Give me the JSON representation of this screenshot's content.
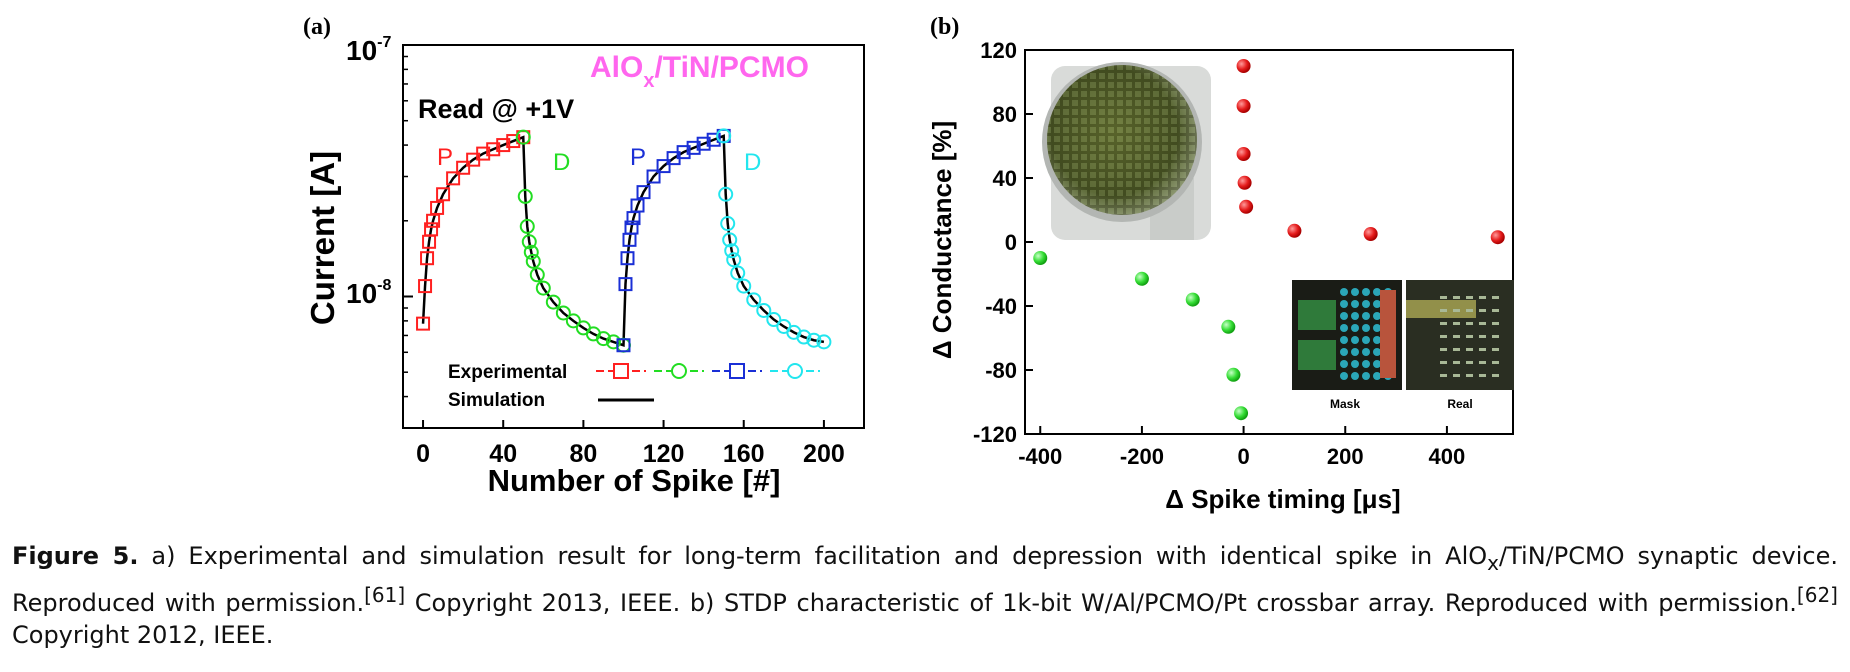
{
  "panel_a": {
    "label": "(a)",
    "material_title": "AlO",
    "material_sub": "x",
    "material_rest": "/TiN/PCMO",
    "read_label": "Read @ +1V",
    "xlabel": "Number of Spike [#]",
    "ylabel": "Current [A]",
    "ytick_top_base": "10",
    "ytick_top_exp": "-7",
    "ytick_mid_base": "10",
    "ytick_mid_exp": "-8",
    "legend_experimental": "Experimental",
    "legend_simulation": "Simulation",
    "seg_labels": [
      "P",
      "D",
      "P",
      "D"
    ],
    "colors": {
      "p1": "#ff2020",
      "d1": "#22dd22",
      "p2": "#1a2fd6",
      "d2": "#22e6ee",
      "sim": "#000000",
      "title": "#ff66ee"
    }
  },
  "panel_b": {
    "label": "(b)",
    "xlabel": "Δ Spike timing [μs]",
    "ylabel": "Δ Conductance [%]",
    "inset_mask_label": "Mask",
    "inset_real_label": "Real"
  },
  "caption": {
    "fig_label": "Figure 5.",
    "text_1": " a) Experimental and simulation result for long-term facilitation and depression with identical spike in AlO",
    "text_1_sub": "x",
    "text_2": "/TiN/PCMO synaptic device. Reproduced with permission.",
    "ref_1": "[61]",
    "text_3": " Copyright 2013, IEEE. b) STDP characteristic of 1k-bit W/Al/PCMO/Pt crossbar array. Reproduced with permission.",
    "ref_2": "[62]",
    "text_4": " Copyright 2012, IEEE."
  },
  "chart_data": [
    {
      "type": "scatter",
      "title": "AlOx/TiN/PCMO",
      "xlabel": "Number of Spike [#]",
      "ylabel": "Current [A]",
      "xlim": [
        -10,
        220
      ],
      "ylim": [
        3e-09,
        1e-07
      ],
      "yscale": "log",
      "xticks": [
        0,
        40,
        80,
        120,
        160,
        200
      ],
      "yticks": [
        1e-08,
        1e-07
      ],
      "series": [
        {
          "name": "P",
          "color": "#ff2020",
          "marker": "square",
          "x": [
            0,
            1,
            2,
            3,
            4,
            5,
            7,
            10,
            15,
            20,
            25,
            30,
            35,
            40,
            45,
            50
          ],
          "y": [
            7.8e-09,
            1.1e-08,
            1.42e-08,
            1.65e-08,
            1.85e-08,
            2e-08,
            2.25e-08,
            2.55e-08,
            2.95e-08,
            3.25e-08,
            3.5e-08,
            3.7e-08,
            3.85e-08,
            4e-08,
            4.15e-08,
            4.3e-08
          ]
        },
        {
          "name": "D",
          "color": "#22dd22",
          "marker": "circle",
          "x": [
            50,
            51,
            52,
            53,
            54,
            55,
            57,
            60,
            65,
            70,
            75,
            80,
            85,
            90,
            95,
            100
          ],
          "y": [
            4.3e-08,
            2.5e-08,
            1.9e-08,
            1.65e-08,
            1.5e-08,
            1.38e-08,
            1.22e-08,
            1.08e-08,
            9.5e-09,
            8.6e-09,
            8e-09,
            7.5e-09,
            7.1e-09,
            6.8e-09,
            6.6e-09,
            6.4e-09
          ]
        },
        {
          "name": "P",
          "color": "#1a2fd6",
          "marker": "square",
          "x": [
            100,
            101,
            102,
            103,
            104,
            105,
            107,
            110,
            115,
            120,
            125,
            130,
            135,
            140,
            145,
            150
          ],
          "y": [
            6.4e-09,
            1.12e-08,
            1.42e-08,
            1.68e-08,
            1.88e-08,
            2.05e-08,
            2.3e-08,
            2.6e-08,
            3e-08,
            3.3e-08,
            3.55e-08,
            3.75e-08,
            3.9e-08,
            4.05e-08,
            4.2e-08,
            4.35e-08
          ]
        },
        {
          "name": "D",
          "color": "#22e6ee",
          "marker": "circle",
          "x": [
            150,
            151,
            152,
            153,
            154,
            155,
            157,
            160,
            165,
            170,
            175,
            180,
            185,
            190,
            195,
            200
          ],
          "y": [
            4.35e-08,
            2.55e-08,
            1.95e-08,
            1.68e-08,
            1.52e-08,
            1.4e-08,
            1.24e-08,
            1.1e-08,
            9.7e-09,
            8.8e-09,
            8.1e-09,
            7.6e-09,
            7.2e-09,
            6.9e-09,
            6.7e-09,
            6.6e-09
          ]
        }
      ],
      "simulation": {
        "name": "Simulation",
        "color": "#000000"
      }
    },
    {
      "type": "scatter",
      "xlabel": "Δ Spike timing [μs]",
      "ylabel": "Δ Conductance [%]",
      "xlim": [
        -430,
        530
      ],
      "ylim": [
        -120,
        120
      ],
      "xticks": [
        -400,
        -200,
        0,
        200,
        400
      ],
      "yticks": [
        -120,
        -80,
        -40,
        0,
        40,
        80,
        120
      ],
      "series": [
        {
          "color": "#e02020",
          "x": [
            0,
            0,
            0,
            2,
            5,
            100,
            250,
            500
          ],
          "y": [
            110,
            85,
            55,
            37,
            22,
            7,
            5,
            3
          ]
        },
        {
          "color": "#33dd33",
          "x": [
            -400,
            -200,
            -100,
            -30,
            -20,
            -5
          ],
          "y": [
            -10,
            -23,
            -36,
            -53,
            -83,
            -107
          ]
        }
      ]
    }
  ]
}
